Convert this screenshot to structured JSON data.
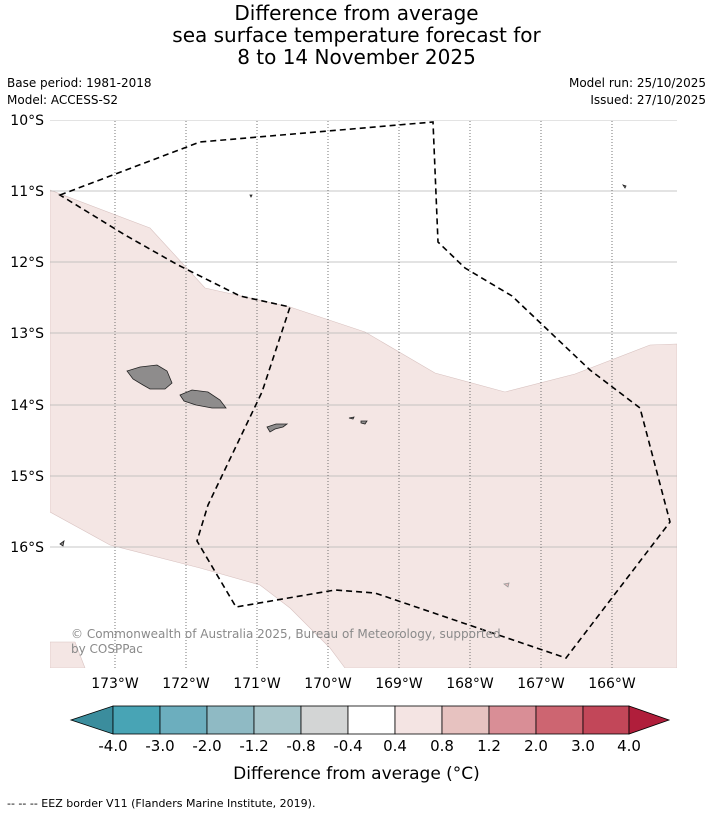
{
  "title": {
    "line1": "Difference from average",
    "line2": "sea surface temperature forecast for",
    "line3": "8 to 14 November 2025"
  },
  "meta": {
    "base_period": "Base period: 1981-2018",
    "model": "Model: ACCESS-S2",
    "model_run": "Model run: 25/10/2025",
    "issued": "Issued: 27/10/2025"
  },
  "axes": {
    "lat_ticks": [
      "10°S",
      "11°S",
      "12°S",
      "13°S",
      "14°S",
      "15°S",
      "16°S"
    ],
    "lon_ticks": [
      "173°W",
      "172°W",
      "171°W",
      "170°W",
      "169°W",
      "168°W",
      "167°W",
      "166°W"
    ]
  },
  "copyright": {
    "line1": "© Commonwealth of Australia 2025, Bureau of Meteorology, supported",
    "line2": "by COSPPac"
  },
  "colorbar": {
    "title": "Difference from average (°C)",
    "labels": [
      "-4.0",
      "-3.0",
      "-2.0",
      "-1.2",
      "-0.8",
      "-0.4",
      "0.4",
      "0.8",
      "1.2",
      "2.0",
      "3.0",
      "4.0"
    ],
    "colors": [
      "#3b8d9d",
      "#48a4b5",
      "#6caebe",
      "#8fbac4",
      "#a9c6cb",
      "#d3d5d5",
      "#ffffff",
      "#f4e4e3",
      "#e7c2c0",
      "#d98e96",
      "#cd6571",
      "#c24759",
      "#b01e3b"
    ]
  },
  "legend": {
    "eez": "--  --  -- EEZ border V11 (Flanders Marine Institute, 2019)."
  },
  "map_colors": {
    "anomaly_fill": "#f4e6e4",
    "land": "#8e8c8c"
  }
}
